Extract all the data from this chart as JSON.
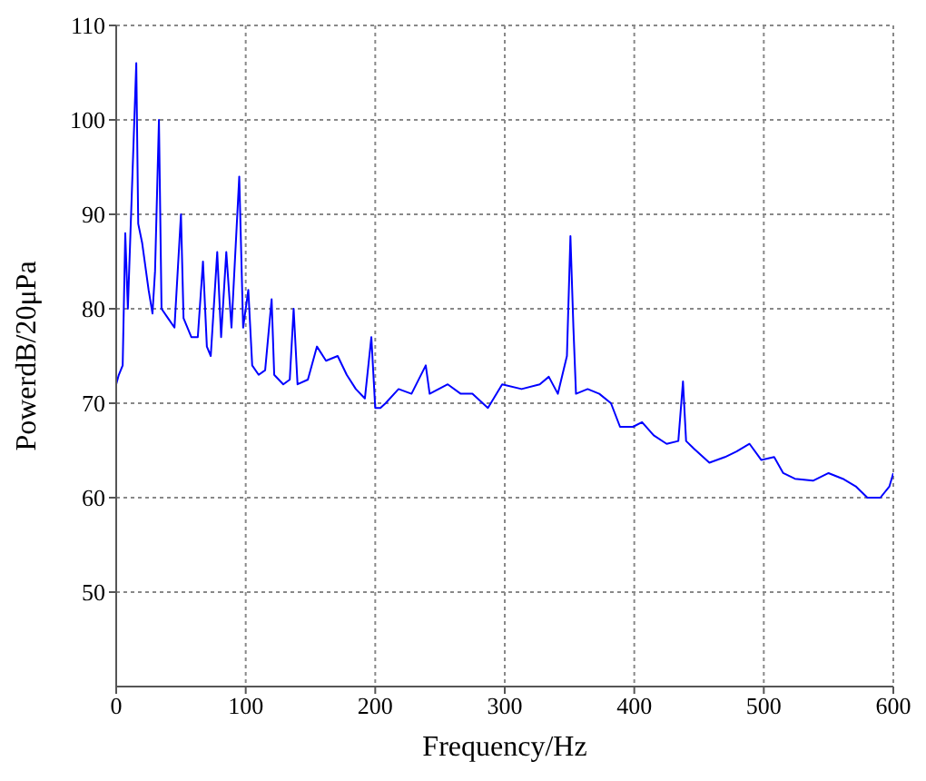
{
  "chart_data": {
    "type": "line",
    "xlabel": "Frequency/Hz",
    "ylabel": "PowerdB/20μPa",
    "xlim": [
      0,
      600
    ],
    "ylim": [
      40,
      110
    ],
    "xticks": [
      0,
      100,
      200,
      300,
      400,
      500,
      600
    ],
    "yticks": [
      50,
      60,
      70,
      80,
      90,
      100,
      110
    ],
    "grid": true,
    "marker": "none",
    "line_style": "solid",
    "series": [
      {
        "color": "#0000ff",
        "x": [
          0,
          2,
          5,
          7,
          9,
          12,
          15.5,
          17,
          20,
          25,
          28,
          30,
          33,
          35,
          40,
          45,
          50,
          52,
          58,
          63,
          67,
          70,
          73,
          78,
          81,
          85,
          89,
          95,
          98,
          102,
          105,
          110,
          115,
          120,
          122,
          129,
          134,
          137,
          140,
          148,
          155,
          162,
          171,
          178,
          185,
          192,
          197,
          200,
          204,
          208,
          218,
          228,
          239,
          242,
          256,
          266,
          275,
          287,
          298,
          313,
          327,
          334,
          341,
          348,
          350.7,
          353,
          355,
          364,
          373,
          382,
          389,
          399,
          406,
          415,
          425,
          434,
          437.6,
          440,
          446,
          458,
          470,
          479,
          489,
          498,
          508,
          515,
          524,
          538,
          550,
          561,
          571,
          580,
          590,
          597,
          600
        ],
        "values": [
          72,
          73,
          74,
          88,
          80,
          92,
          106,
          89,
          87,
          82,
          79.5,
          84,
          100,
          80,
          79,
          78,
          90,
          79,
          77,
          77,
          85,
          76,
          75,
          86,
          77,
          86,
          78,
          94,
          78,
          82,
          74,
          73,
          73.5,
          81,
          73,
          72,
          72.5,
          80,
          72,
          72.5,
          76,
          74.5,
          75,
          73,
          71.5,
          70.5,
          77,
          69.5,
          69.5,
          70,
          71.5,
          71,
          74,
          71,
          72,
          71,
          71,
          69.5,
          72,
          71.5,
          72,
          72.8,
          71,
          75,
          87.7,
          78,
          71,
          71.5,
          71,
          70,
          67.5,
          67.5,
          68,
          66.6,
          65.7,
          66,
          72.3,
          66,
          65.2,
          63.7,
          64.3,
          64.9,
          65.7,
          64,
          64.3,
          62.6,
          62,
          61.8,
          62.6,
          62,
          61.2,
          60,
          60,
          61.2,
          62.6
        ]
      }
    ]
  }
}
